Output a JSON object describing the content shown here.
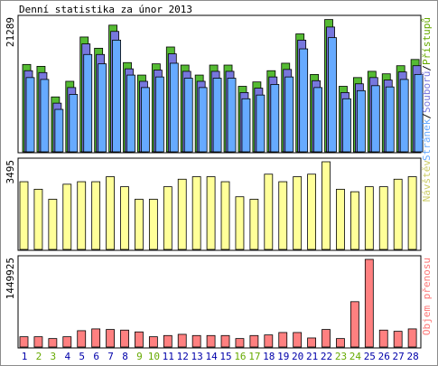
{
  "title": "Denní statistika za únor 2013",
  "colors": {
    "hits": "#66aaff",
    "files": "#7777dd",
    "pages": "#55bb33",
    "visits": "#ffff99",
    "kbytes": "#ff8080",
    "weekend_label": "#66aa00",
    "weekday_label": "#0000aa",
    "visits_label": "#cccc66",
    "hits_legend": "#66aaff",
    "files_legend": "#7777dd",
    "pages_legend": "#66aa00",
    "kbytes_legend": "#ff7777"
  },
  "chart_data": [
    {
      "type": "bar",
      "name": "hits-files-pages",
      "categories": [
        "1",
        "2",
        "3",
        "4",
        "5",
        "6",
        "7",
        "8",
        "9",
        "10",
        "11",
        "12",
        "13",
        "14",
        "15",
        "16",
        "17",
        "18",
        "19",
        "20",
        "21",
        "22",
        "23",
        "24",
        "25",
        "26",
        "27",
        "28"
      ],
      "weekend": [
        "2",
        "3",
        "9",
        "10",
        "16",
        "17",
        "23",
        "24"
      ],
      "ymax_label": "21289",
      "ylim": [
        0,
        21289
      ],
      "legend": [
        "Stránek",
        "Souborů",
        "Přístupů"
      ],
      "series": [
        {
          "name": "Přístupů",
          "values": [
            14000,
            13700,
            8800,
            11300,
            18400,
            16600,
            20300,
            14300,
            12300,
            14100,
            16800,
            13900,
            12300,
            13900,
            13900,
            10500,
            11200,
            13000,
            14200,
            18900,
            12400,
            21200,
            10500,
            11900,
            12900,
            12500,
            13800,
            14800
          ]
        },
        {
          "name": "Souborů",
          "values": [
            13000,
            12700,
            7800,
            10300,
            17300,
            15600,
            19300,
            13300,
            11300,
            13100,
            15700,
            12900,
            11300,
            12900,
            12900,
            9500,
            10200,
            12000,
            13200,
            17900,
            11400,
            20000,
            9500,
            10900,
            11900,
            11500,
            12800,
            13800
          ]
        },
        {
          "name": "Stránek",
          "values": [
            11900,
            11600,
            6800,
            9200,
            15600,
            14100,
            17900,
            12300,
            10300,
            12000,
            14200,
            11800,
            10300,
            11800,
            11800,
            8500,
            9100,
            10800,
            12000,
            16500,
            10300,
            18300,
            8500,
            9800,
            10600,
            10400,
            11600,
            12400
          ]
        }
      ]
    },
    {
      "type": "bar",
      "name": "visits",
      "categories": [
        "1",
        "2",
        "3",
        "4",
        "5",
        "6",
        "7",
        "8",
        "9",
        "10",
        "11",
        "12",
        "13",
        "14",
        "15",
        "16",
        "17",
        "18",
        "19",
        "20",
        "21",
        "22",
        "23",
        "24",
        "25",
        "26",
        "27",
        "28"
      ],
      "ymax_label": "3495",
      "ylim": [
        0,
        3495
      ],
      "legend": [
        "Návštěv"
      ],
      "series": [
        {
          "name": "Návštěv",
          "values": [
            2700,
            2400,
            2000,
            2600,
            2700,
            2700,
            2900,
            2500,
            2000,
            2000,
            2500,
            2800,
            2900,
            2900,
            2700,
            2100,
            2000,
            3000,
            2700,
            2900,
            3000,
            3495,
            2400,
            2300,
            2500,
            2500,
            2800,
            2900
          ]
        }
      ]
    },
    {
      "type": "bar",
      "name": "kbytes",
      "categories": [
        "1",
        "2",
        "3",
        "4",
        "5",
        "6",
        "7",
        "8",
        "9",
        "10",
        "11",
        "12",
        "13",
        "14",
        "15",
        "16",
        "17",
        "18",
        "19",
        "20",
        "21",
        "22",
        "23",
        "24",
        "25",
        "26",
        "27",
        "28"
      ],
      "ymax_label": "1449925",
      "ylim": [
        0,
        1449925
      ],
      "legend": [
        "Objem přenosu"
      ],
      "series": [
        {
          "name": "Objem přenosu",
          "values": [
            170000,
            170000,
            140000,
            170000,
            270000,
            300000,
            290000,
            280000,
            250000,
            170000,
            190000,
            210000,
            190000,
            190000,
            190000,
            140000,
            190000,
            200000,
            240000,
            240000,
            150000,
            290000,
            140000,
            750000,
            1449925,
            280000,
            260000,
            300000
          ]
        }
      ]
    }
  ]
}
